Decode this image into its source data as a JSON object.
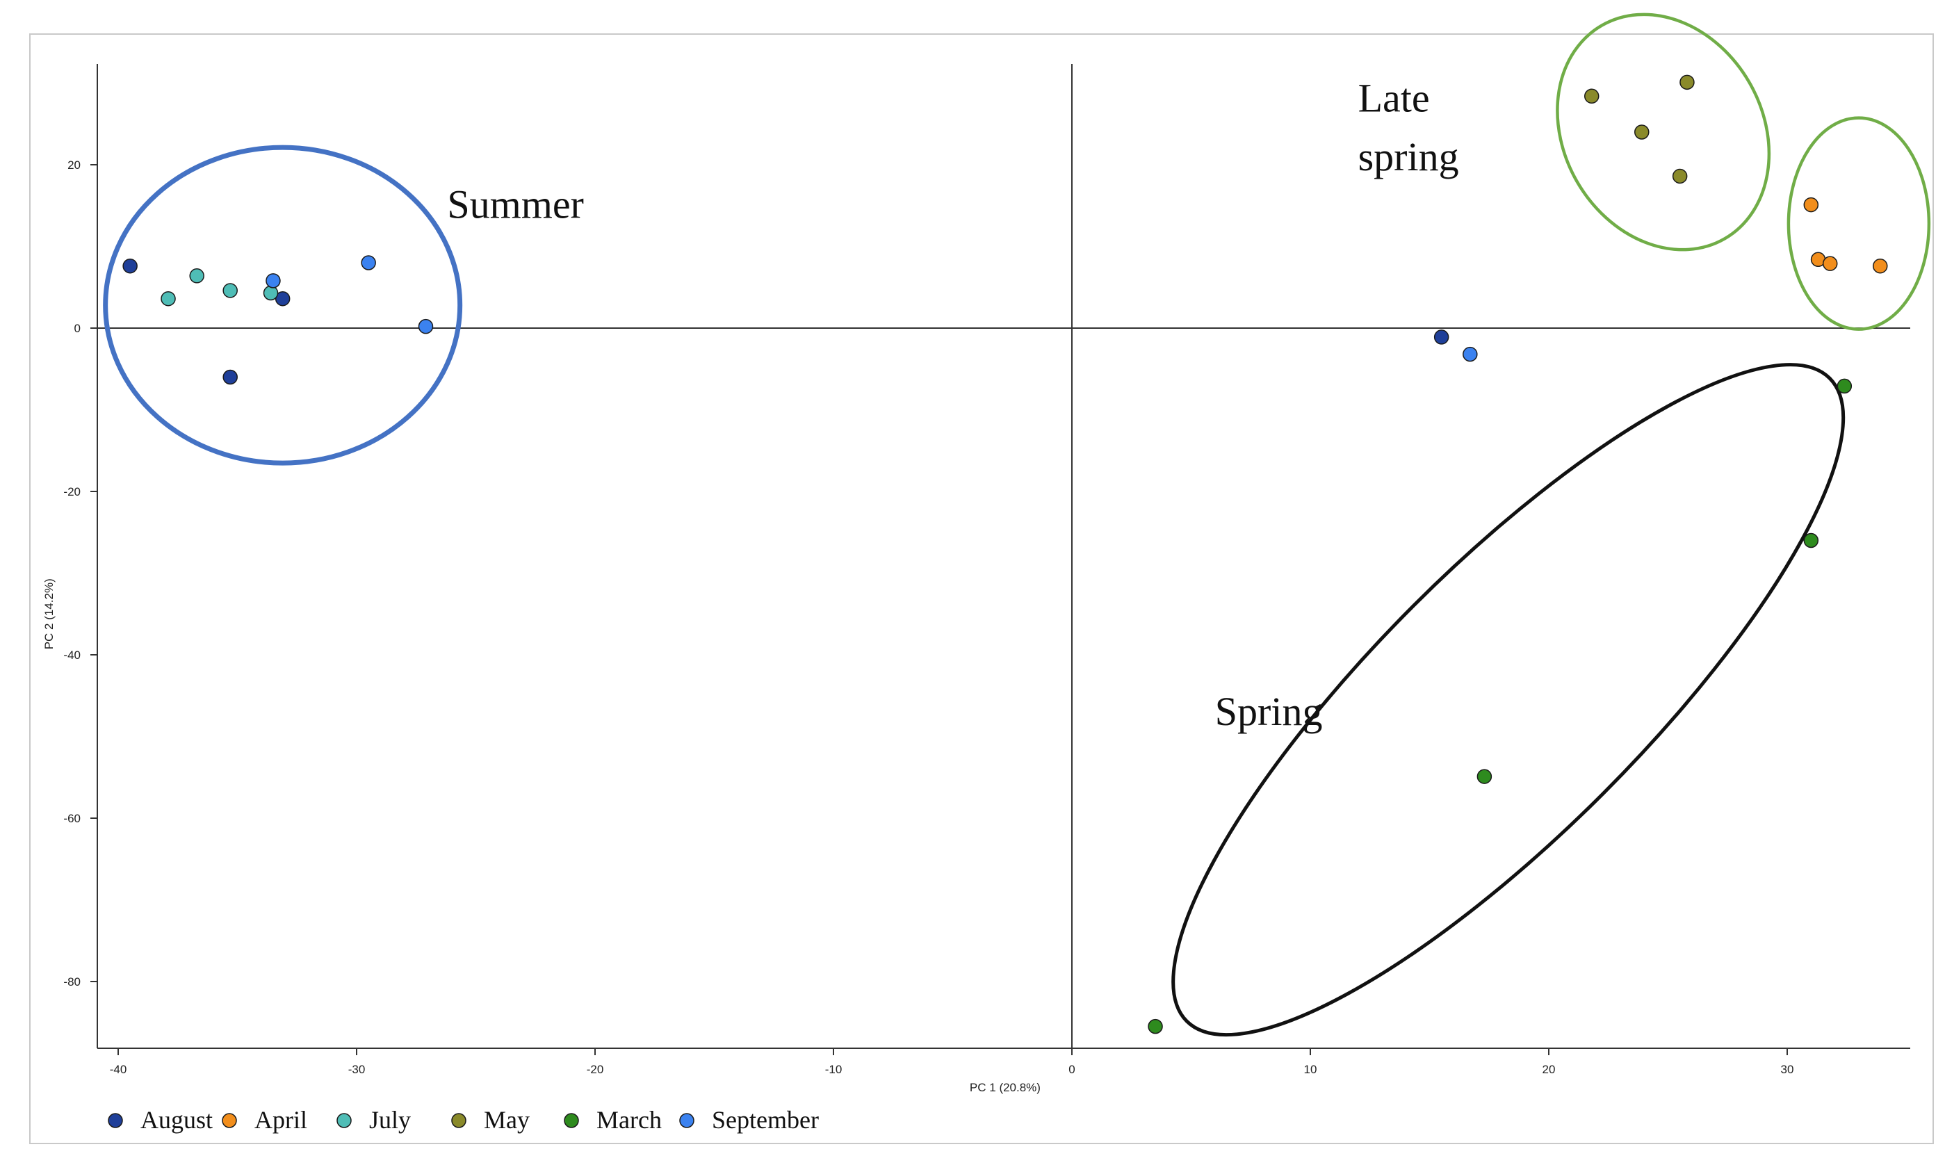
{
  "chart_data": {
    "type": "scatter",
    "xlabel": "PC 1 (20.8%)",
    "ylabel": "PC 2 (14.2%)",
    "xlim": [
      -41,
      35.5
    ],
    "ylim": [
      -88,
      32
    ],
    "xticks": [
      -40,
      -30,
      -20,
      -10,
      0,
      10,
      20,
      30
    ],
    "yticks": [
      20,
      0,
      -20,
      -40,
      -60,
      -80
    ],
    "grid": false,
    "legend_position": "bottom-left",
    "series": [
      {
        "name": "August",
        "color": "#1f3f99",
        "points": [
          [
            -39.5,
            7.6
          ],
          [
            -35.3,
            -6.0
          ],
          [
            -33.1,
            3.6
          ],
          [
            15.5,
            -1.1
          ]
        ]
      },
      {
        "name": "April",
        "color": "#f28e1c",
        "points": [
          [
            31.0,
            15.1
          ],
          [
            31.3,
            8.4
          ],
          [
            31.8,
            7.9
          ],
          [
            33.9,
            7.6
          ]
        ]
      },
      {
        "name": "July",
        "color": "#4fbdb6",
        "points": [
          [
            -37.9,
            3.6
          ],
          [
            -36.7,
            6.4
          ],
          [
            -35.3,
            4.6
          ],
          [
            -33.6,
            4.3
          ]
        ]
      },
      {
        "name": "May",
        "color": "#8a8a2a",
        "points": [
          [
            21.8,
            28.4
          ],
          [
            23.9,
            24.0
          ],
          [
            25.5,
            18.6
          ],
          [
            25.8,
            30.1
          ]
        ]
      },
      {
        "name": "March",
        "color": "#2e8b1e",
        "points": [
          [
            3.5,
            -85.5
          ],
          [
            17.3,
            -54.9
          ],
          [
            31.0,
            -26.0
          ],
          [
            32.4,
            -7.1
          ]
        ]
      },
      {
        "name": "September",
        "color": "#3b82f0",
        "points": [
          [
            -33.5,
            5.8
          ],
          [
            -29.5,
            8.0
          ],
          [
            -27.1,
            0.2
          ],
          [
            16.7,
            -3.2
          ]
        ]
      }
    ],
    "annotations": [
      {
        "text": "Summer",
        "x": -26.2,
        "y": 13.5
      },
      {
        "text": "Late",
        "x": 12.0,
        "y": 26.5
      },
      {
        "text": "spring",
        "x": 12.0,
        "y": 19.3
      },
      {
        "text": "Spring",
        "x": 6.0,
        "y": -48.6
      }
    ],
    "cluster_ellipses": [
      {
        "label": "Summer",
        "color": "#4472c4",
        "cx": -33.1,
        "cy": 2.8,
        "rx": 7.4,
        "ry": 19.2,
        "rotation_deg": 0
      },
      {
        "label": "May",
        "color": "#70ad47",
        "cx": 24.8,
        "cy": 24.0,
        "rx": 4.4,
        "ry": 15.5,
        "rotation_deg": -30
      },
      {
        "label": "April",
        "color": "#70ad47",
        "cx": 33.0,
        "cy": 12.8,
        "rx": 2.9,
        "ry": 12.8,
        "rotation_deg": 0
      },
      {
        "label": "Spring",
        "color": "#111111",
        "cx": 18.3,
        "cy": -45.5,
        "rx": 3.5,
        "ry": 57.0,
        "rotation_deg": 45
      }
    ]
  }
}
